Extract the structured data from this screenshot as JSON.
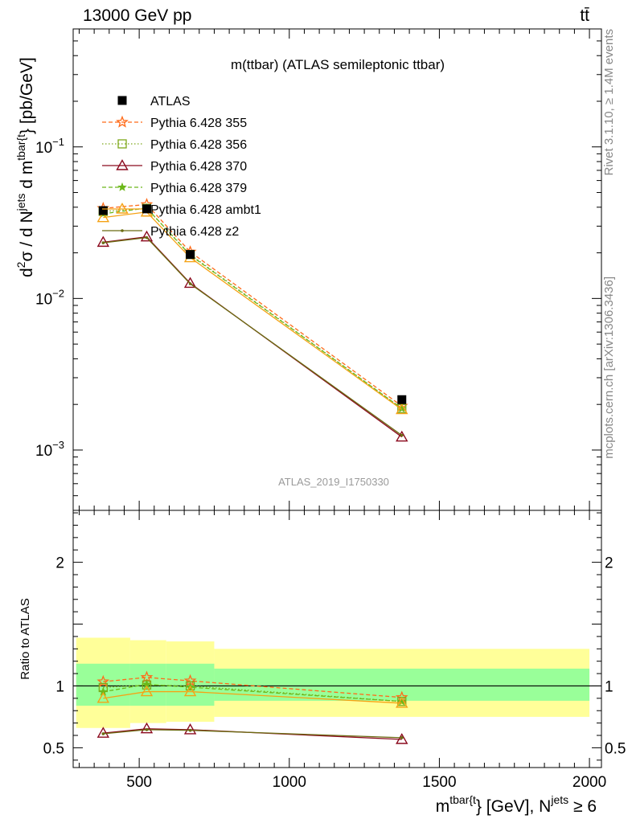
{
  "header": {
    "energy_label": "13000 GeV pp",
    "process_label": "tt̄"
  },
  "side_labels": {
    "rivet": "Rivet 3.1.10, ≥ 1.4M events",
    "mcplots": "mcplots.cern.ch [arXiv:1306.3436]"
  },
  "chart_data": {
    "type": "line",
    "title": "m(ttbar) (ATLAS semileptonic ttbar)",
    "analysis_id": "ATLAS_2019_I1750330",
    "xlabel": {
      "main": "m",
      "sup1": "tbar{t",
      "mid": "} [GeV], N",
      "sup2": "jets",
      "end": " ≥ 6"
    },
    "ylabel": {
      "d": "d",
      "sup1": "2",
      "sigma": "σ / d N",
      "sup2": "jets",
      "dm": " d m",
      "sup3": "tbar{t",
      "end": "} [pb/GeV]"
    },
    "ratio_ylabel": "Ratio to ATLAS",
    "xlim": [
      280,
      2040
    ],
    "ylim_main": [
      0.0004,
      0.6
    ],
    "ylim_ratio": [
      0.34,
      2.42
    ],
    "log_y_main": true,
    "x_ticks": [
      500,
      1000,
      1500,
      2000
    ],
    "x_tick_labels": [
      "500",
      "1000",
      "1500",
      "2000"
    ],
    "main_y_ticks": [
      0.1,
      0.01,
      0.001
    ],
    "main_y_tick_labels": [
      [
        "10",
        "−1"
      ],
      [
        "10",
        "−2"
      ],
      [
        "10",
        "−3"
      ]
    ],
    "ratio_y_ticks": [
      0.5,
      1,
      2
    ],
    "ratio_y_tick_labels": [
      "0.5",
      "1",
      "2"
    ],
    "bins": [
      {
        "x": 380,
        "lo": 290,
        "hi": 470
      },
      {
        "x": 525,
        "lo": 470,
        "hi": 590
      },
      {
        "x": 670,
        "lo": 590,
        "hi": 750
      },
      {
        "x": 1375,
        "lo": 750,
        "hi": 2000
      }
    ],
    "data": {
      "name": "ATLAS",
      "values": [
        0.038,
        0.039,
        0.0195,
        0.00215
      ],
      "band_inner": [
        [
          0.84,
          1.18
        ],
        [
          0.84,
          1.18
        ],
        [
          0.84,
          1.18
        ],
        [
          0.88,
          1.14
        ]
      ],
      "band_outer": [
        [
          0.66,
          1.39
        ],
        [
          0.7,
          1.37
        ],
        [
          0.71,
          1.36
        ],
        [
          0.75,
          1.3
        ]
      ],
      "inner_color": "#99ff99",
      "outer_color": "#ffff99"
    },
    "series": [
      {
        "name": "Pythia 6.428 355",
        "color": "#ff6b19",
        "dash": "5,3",
        "marker": "star-open",
        "values": [
          0.0393,
          0.0417,
          0.0203,
          0.00195
        ]
      },
      {
        "name": "Pythia 6.428 356",
        "color": "#7ea81a",
        "dash": "1.5,2.5",
        "marker": "square-open",
        "values": [
          0.0375,
          0.0393,
          0.0195,
          0.00188
        ]
      },
      {
        "name": "Pythia 6.428 370",
        "color": "#8b0a1e",
        "dash": "",
        "marker": "triangle-open",
        "values": [
          0.0235,
          0.0255,
          0.0126,
          0.00122
        ]
      },
      {
        "name": "Pythia 6.428 379",
        "color": "#6cb81a",
        "dash": "5,3",
        "marker": "star-filled",
        "values": [
          0.0362,
          0.0395,
          0.0193,
          0.00188
        ]
      },
      {
        "name": "Pythia 6.428 ambt1",
        "color": "#f5a214",
        "dash": "",
        "marker": "triangle-open",
        "values": [
          0.0342,
          0.0372,
          0.0186,
          0.00185
        ]
      },
      {
        "name": "Pythia 6.428 z2",
        "color": "#6b6b12",
        "dash": "",
        "marker": "dot",
        "values": [
          0.0233,
          0.0252,
          0.0125,
          0.00125
        ]
      }
    ]
  }
}
